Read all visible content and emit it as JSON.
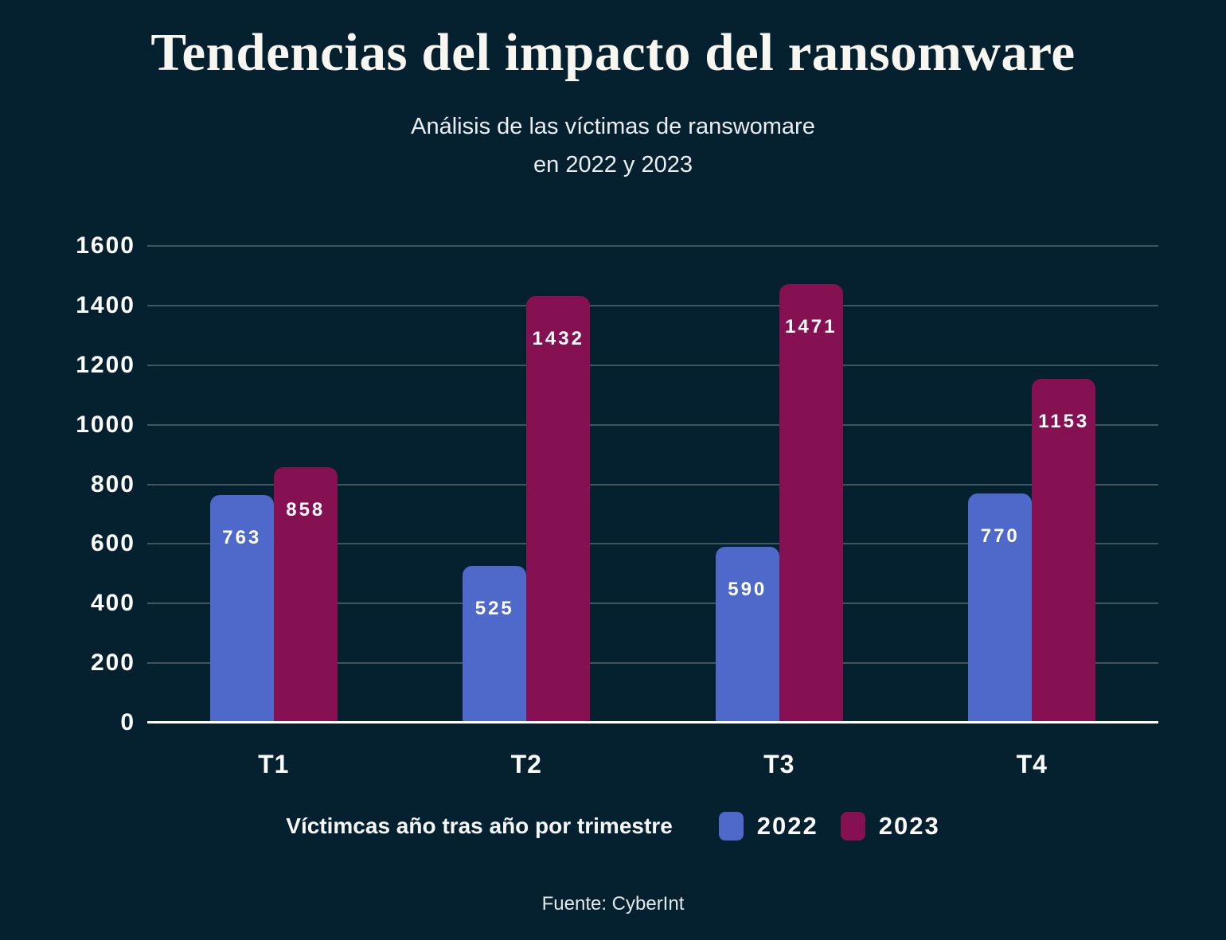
{
  "chart_data": {
    "type": "bar",
    "title": "Tendencias del impacto del ransomware",
    "subtitle_line1": "Análisis de las víctimas de ranswomare",
    "subtitle_line2": "en 2022 y 2023",
    "categories": [
      "T1",
      "T2",
      "T3",
      "T4"
    ],
    "series": [
      {
        "name": "2022",
        "color": "#4E69C9",
        "values": [
          763,
          525,
          590,
          770
        ]
      },
      {
        "name": "2023",
        "color": "#851153",
        "values": [
          858,
          1432,
          1471,
          1153
        ]
      }
    ],
    "xlabel": "",
    "ylabel": "",
    "ylim": [
      0,
      1600
    ],
    "ytick_step": 200,
    "ytick_labels": [
      "0",
      "200",
      "400",
      "600",
      "800",
      "1000",
      "1200",
      "1400",
      "1600"
    ],
    "grid": true,
    "show_values": true,
    "legend_label": "Víctimcas año tras año por trimestre",
    "legend_position": "bottom"
  },
  "footer": {
    "source": "Fuente: CyberInt"
  },
  "colors": {
    "background": "#05202E",
    "gridline": "rgba(255,255,255,0.24)",
    "axis_line": "#FFFFFF",
    "text": "#FFFFFF",
    "series_2022": "#4E69C9",
    "series_2023": "#851153"
  }
}
